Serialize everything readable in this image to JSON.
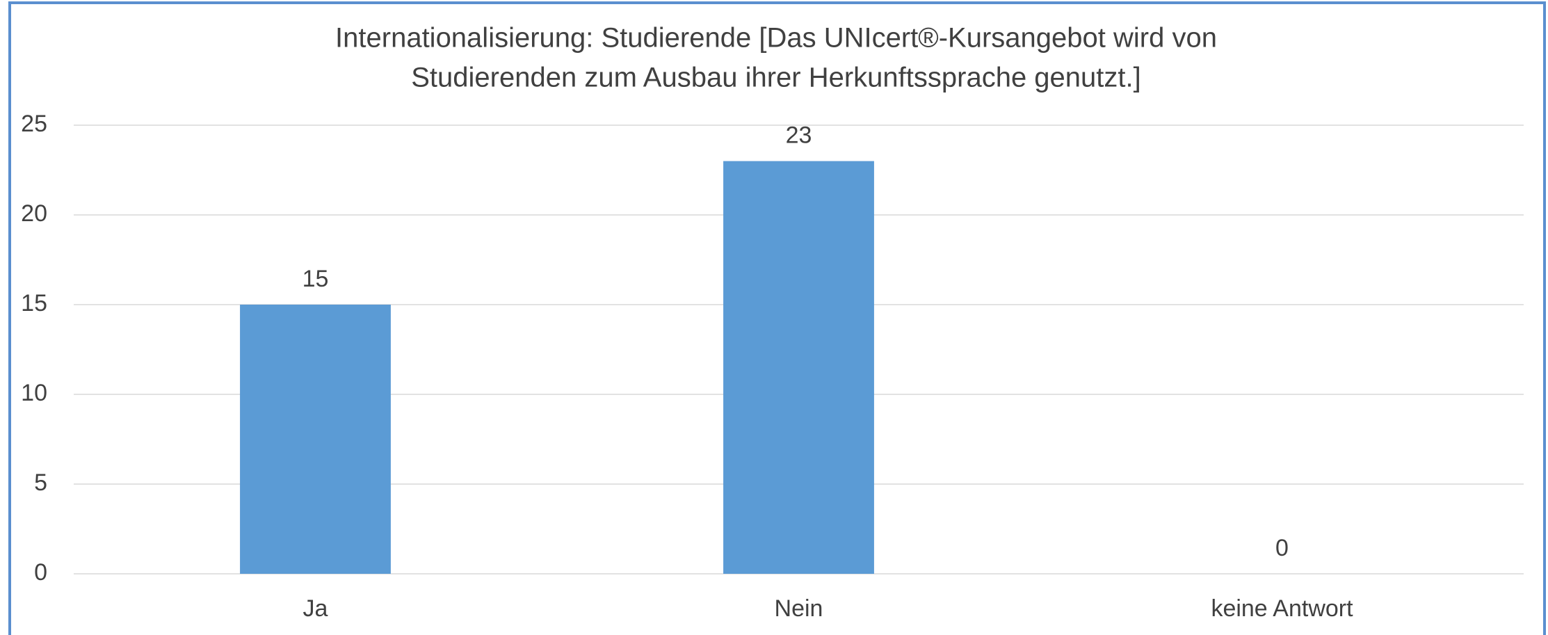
{
  "chart_data": {
    "type": "bar",
    "title": [
      "Internationalisierung: Studierende [Das UNIcert®-Kursangebot wird von",
      "Studierenden zum Ausbau ihrer Herkunftssprache genutzt.]"
    ],
    "categories": [
      "Ja",
      "Nein",
      "keine Antwort"
    ],
    "values": [
      15,
      23,
      0
    ],
    "color": "#5b9bd5",
    "ylim": [
      0,
      25
    ],
    "yticks": [
      0,
      5,
      10,
      15,
      20,
      25
    ],
    "grid": true
  }
}
